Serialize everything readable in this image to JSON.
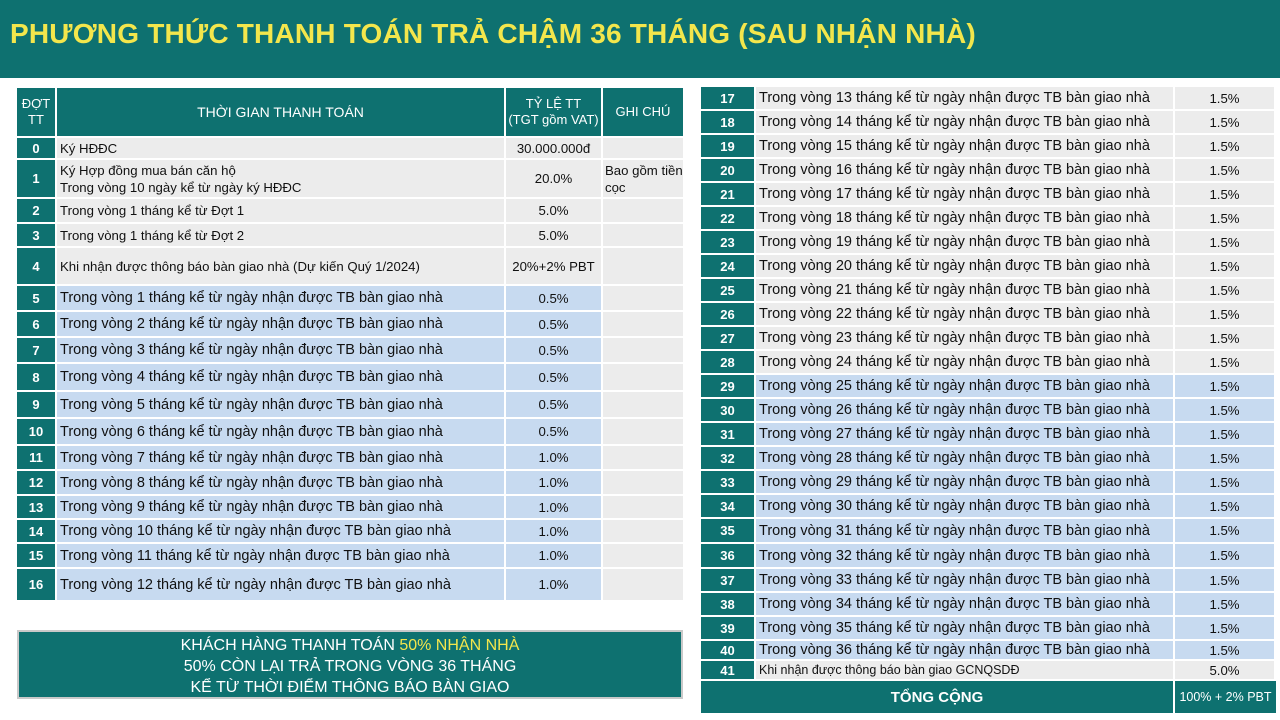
{
  "title": "PHƯƠNG THỨC THANH TOÁN TRẢ CHẬM 36 THÁNG (SAU NHẬN NHÀ)",
  "left_table": {
    "headers": {
      "dot_line1": "ĐỢT",
      "dot_line2": "TT",
      "time": "THỜI GIAN THANH TOÁN",
      "rate_line1": "TỶ LỆ TT",
      "rate_line2": "(TGT gồm VAT)",
      "note": "GHI CHÚ"
    },
    "rows": [
      {
        "no": "0",
        "desc": "Ký HĐĐC",
        "desc2": "",
        "rate": "30.000.000đ",
        "note": "",
        "note2": ""
      },
      {
        "no": "1",
        "desc": "Ký Hợp đồng mua bán căn hộ",
        "desc2": "Trong vòng 10 ngày kể từ ngày ký HĐĐC",
        "rate": "20.0%",
        "note": "Bao gồm tiền",
        "note2": "cọc"
      },
      {
        "no": "2",
        "desc": "Trong vòng 1 tháng kể từ Đợt 1",
        "desc2": "",
        "rate": "5.0%",
        "note": "",
        "note2": ""
      },
      {
        "no": "3",
        "desc": "Trong vòng 1 tháng kể từ Đợt 2",
        "desc2": "",
        "rate": "5.0%",
        "note": "",
        "note2": ""
      },
      {
        "no": "4",
        "desc": "Khi nhận được thông báo bàn giao nhà (Dự kiến Quý 1/2024)",
        "desc2": "",
        "rate": "20%+2% PBT",
        "note": "",
        "note2": ""
      },
      {
        "no": "5",
        "desc": "Trong vòng 1 tháng kể từ ngày nhận được TB bàn giao nhà",
        "desc2": "",
        "rate": "0.5%",
        "note": "",
        "note2": ""
      },
      {
        "no": "6",
        "desc": "Trong vòng 2 tháng kể từ ngày nhận được TB bàn giao nhà",
        "desc2": "",
        "rate": "0.5%",
        "note": "",
        "note2": ""
      },
      {
        "no": "7",
        "desc": "Trong vòng 3 tháng kể từ ngày nhận được TB bàn giao nhà",
        "desc2": "",
        "rate": "0.5%",
        "note": "",
        "note2": ""
      },
      {
        "no": "8",
        "desc": "Trong vòng 4 tháng kể từ ngày nhận được TB bàn giao nhà",
        "desc2": "",
        "rate": "0.5%",
        "note": "",
        "note2": ""
      },
      {
        "no": "9",
        "desc": "Trong vòng 5 tháng kể từ ngày nhận được TB bàn giao nhà",
        "desc2": "",
        "rate": "0.5%",
        "note": "",
        "note2": ""
      },
      {
        "no": "10",
        "desc": "Trong vòng 6 tháng kể từ ngày nhận được TB bàn giao nhà",
        "desc2": "",
        "rate": "0.5%",
        "note": "",
        "note2": ""
      },
      {
        "no": "11",
        "desc": "Trong vòng 7 tháng kể từ ngày nhận được TB bàn giao nhà",
        "desc2": "",
        "rate": "1.0%",
        "note": "",
        "note2": ""
      },
      {
        "no": "12",
        "desc": "Trong vòng 8 tháng kể từ ngày nhận được TB bàn giao nhà",
        "desc2": "",
        "rate": "1.0%",
        "note": "",
        "note2": ""
      },
      {
        "no": "13",
        "desc": "Trong vòng 9 tháng kể từ ngày nhận được TB bàn giao nhà",
        "desc2": "",
        "rate": "1.0%",
        "note": "",
        "note2": ""
      },
      {
        "no": "14",
        "desc": "Trong vòng 10 tháng kể từ ngày nhận được TB bàn giao nhà",
        "desc2": "",
        "rate": "1.0%",
        "note": "",
        "note2": ""
      },
      {
        "no": "15",
        "desc": "Trong vòng 11 tháng kể từ ngày nhận được TB bàn giao nhà",
        "desc2": "",
        "rate": "1.0%",
        "note": "",
        "note2": ""
      },
      {
        "no": "16",
        "desc": "Trong vòng 12 tháng kể từ ngày nhận được TB bàn giao nhà",
        "desc2": "",
        "rate": "1.0%",
        "note": "",
        "note2": ""
      }
    ]
  },
  "summary": {
    "line1_a": "KHÁCH HÀNG THANH TOÁN ",
    "line1_highlight": "50% NHẬN NHÀ",
    "line2": "50% CÒN LẠI TRẢ TRONG VÒNG 36 THÁNG",
    "line3": "KỂ TỪ THỜI ĐIỂM THÔNG BÁO BÀN GIAO"
  },
  "right_table": {
    "rows": [
      {
        "no": "17",
        "desc": "Trong vòng 13 tháng kể từ ngày nhận được TB bàn giao nhà",
        "rate": "1.5%"
      },
      {
        "no": "18",
        "desc": "Trong vòng 14 tháng kể từ ngày nhận được TB bàn giao nhà",
        "rate": "1.5%"
      },
      {
        "no": "19",
        "desc": "Trong vòng 15 tháng kể từ ngày nhận được TB bàn giao nhà",
        "rate": "1.5%"
      },
      {
        "no": "20",
        "desc": "Trong vòng 16 tháng kể từ ngày nhận được TB bàn giao nhà",
        "rate": "1.5%"
      },
      {
        "no": "21",
        "desc": "Trong vòng 17 tháng kể từ ngày nhận được TB bàn giao nhà",
        "rate": "1.5%"
      },
      {
        "no": "22",
        "desc": "Trong vòng 18 tháng kể từ ngày nhận được TB bàn giao nhà",
        "rate": "1.5%"
      },
      {
        "no": "23",
        "desc": "Trong vòng 19 tháng kể từ ngày nhận được TB bàn giao nhà",
        "rate": "1.5%"
      },
      {
        "no": "24",
        "desc": "Trong vòng 20 tháng kể từ ngày nhận được TB bàn giao nhà",
        "rate": "1.5%"
      },
      {
        "no": "25",
        "desc": "Trong vòng 21 tháng kể từ ngày nhận được TB bàn giao nhà",
        "rate": "1.5%"
      },
      {
        "no": "26",
        "desc": "Trong vòng 22 tháng kể từ ngày nhận được TB bàn giao nhà",
        "rate": "1.5%"
      },
      {
        "no": "27",
        "desc": "Trong vòng 23 tháng kể từ ngày nhận được TB bàn giao nhà",
        "rate": "1.5%"
      },
      {
        "no": "28",
        "desc": "Trong vòng 24 tháng kể từ ngày nhận được TB bàn giao nhà",
        "rate": "1.5%"
      },
      {
        "no": "29",
        "desc": "Trong vòng 25 tháng kể từ ngày nhận được TB bàn giao nhà",
        "rate": "1.5%"
      },
      {
        "no": "30",
        "desc": "Trong vòng 26 tháng kể từ ngày nhận được TB bàn giao nhà",
        "rate": "1.5%"
      },
      {
        "no": "31",
        "desc": "Trong vòng 27 tháng kể từ ngày nhận được TB bàn giao nhà",
        "rate": "1.5%"
      },
      {
        "no": "32",
        "desc": "Trong vòng 28 tháng kể từ ngày nhận được TB bàn giao nhà",
        "rate": "1.5%"
      },
      {
        "no": "33",
        "desc": "Trong vòng 29 tháng kể từ ngày nhận được TB bàn giao nhà",
        "rate": "1.5%"
      },
      {
        "no": "34",
        "desc": "Trong vòng 30 tháng kể từ ngày nhận được TB bàn giao nhà",
        "rate": "1.5%"
      },
      {
        "no": "35",
        "desc": "Trong vòng 31 tháng kể từ ngày nhận được TB bàn giao nhà",
        "rate": "1.5%"
      },
      {
        "no": "36",
        "desc": "Trong vòng 32 tháng kể từ ngày nhận được TB bàn giao nhà",
        "rate": "1.5%"
      },
      {
        "no": "37",
        "desc": "Trong vòng 33 tháng kể từ ngày nhận được TB bàn giao nhà",
        "rate": "1.5%"
      },
      {
        "no": "38",
        "desc": "Trong vòng 34 tháng kể từ ngày nhận được TB bàn giao nhà",
        "rate": "1.5%"
      },
      {
        "no": "39",
        "desc": "Trong vòng 35 tháng kể từ ngày nhận được TB bàn giao nhà",
        "rate": "1.5%"
      },
      {
        "no": "40",
        "desc": "Trong vòng 36 tháng kể từ ngày nhận được TB bàn giao nhà",
        "rate": "1.5%"
      },
      {
        "no": "41",
        "desc": "Khi nhận được thông báo bàn giao GCNQSDĐ",
        "rate": "5.0%"
      }
    ],
    "total_label": "TỔNG CỘNG",
    "total_value": "100% + 2% PBT"
  },
  "colors": {
    "teal": "#0e7170",
    "yellow": "#f3e64c",
    "row_grey": "#ececec",
    "row_blue": "#c7daf0"
  }
}
